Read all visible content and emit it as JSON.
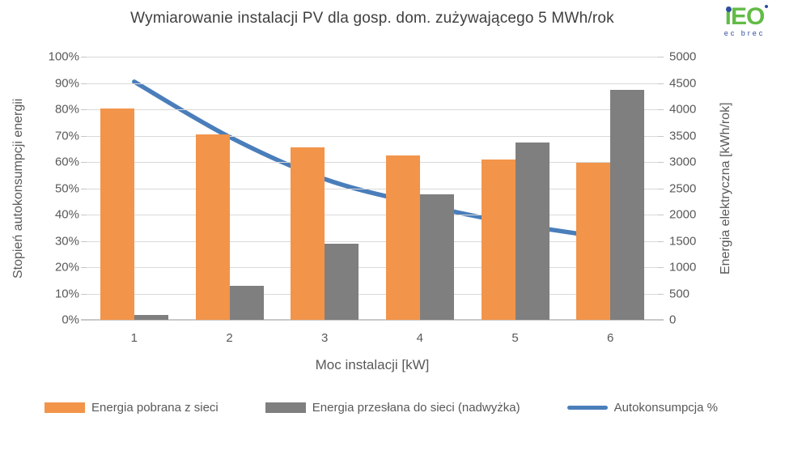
{
  "header": {
    "title": "Wymiarowanie instalacji PV dla gosp. dom. zużywającego 5 MWh/rok",
    "logo": {
      "text": "iEO",
      "tagline": "ec brec",
      "green": "#62bb46",
      "blue": "#2f4e9e"
    }
  },
  "chart_data": {
    "type": "combo-bar-line",
    "title": "Wymiarowanie instalacji PV dla gosp. dom. zużywającego 5 MWh/rok",
    "categories": [
      "1",
      "2",
      "3",
      "4",
      "5",
      "6"
    ],
    "xlabel": "Moc instalacji [kW]",
    "grid": true,
    "grid_color": "#d9d9d9",
    "legend_position": "bottom",
    "axes": {
      "left": {
        "label": "Stopień autokonsumpcji energii",
        "min": 0,
        "max": 100,
        "step": 10,
        "ticks": [
          "0%",
          "10%",
          "20%",
          "30%",
          "40%",
          "50%",
          "60%",
          "70%",
          "80%",
          "90%",
          "100%"
        ]
      },
      "right": {
        "label": "Energia elektryczna [kWh/rok]",
        "min": 0,
        "max": 5000,
        "step": 500,
        "ticks": [
          "0",
          "500",
          "1000",
          "1500",
          "2000",
          "2500",
          "3000",
          "3500",
          "4000",
          "4500",
          "5000"
        ]
      }
    },
    "series": [
      {
        "name": "Energia pobrana z sieci",
        "type": "bar",
        "axis": "right",
        "color": "#f2944a",
        "values": [
          4020,
          3530,
          3270,
          3130,
          3050,
          2990
        ]
      },
      {
        "name": "Energia przesłana do sieci (nadwyżka)",
        "type": "bar",
        "axis": "right",
        "color": "#7f7f7f",
        "values": [
          100,
          640,
          1440,
          2380,
          3370,
          4370
        ]
      },
      {
        "name": "Autokonsumpcja %",
        "type": "line",
        "axis": "left",
        "color": "#4a7ebb",
        "values": [
          90.5,
          69.5,
          53.5,
          44,
          36.5,
          31
        ]
      }
    ]
  }
}
